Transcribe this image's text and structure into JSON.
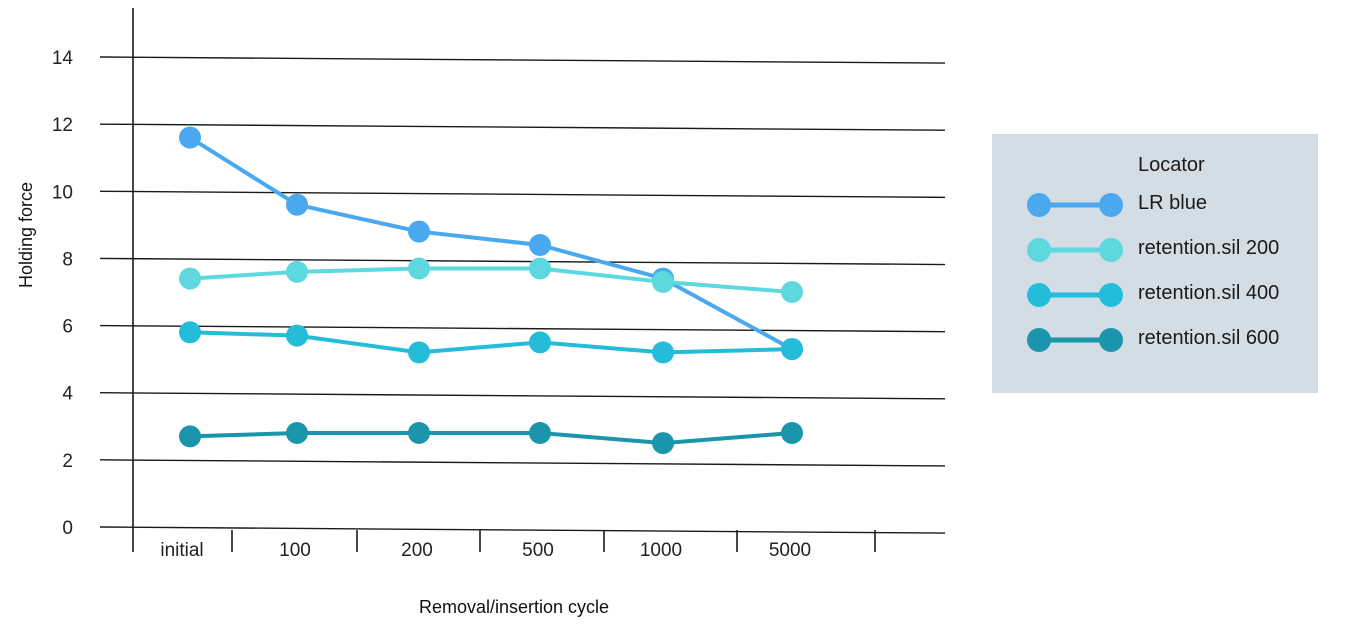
{
  "chart_data": {
    "type": "line",
    "xlabel": "Removal/insertion cycle",
    "ylabel": "Holding force",
    "categories": [
      "initial",
      "100",
      "200",
      "500",
      "1000",
      "5000"
    ],
    "ylim": [
      0,
      14
    ],
    "yticks": [
      0,
      2,
      4,
      6,
      8,
      10,
      12,
      14
    ],
    "grid": true,
    "legend_title": "Locator",
    "legend_position": "right",
    "series": [
      {
        "name": "LR blue",
        "color": "#4aa8ee",
        "values": [
          11.6,
          9.6,
          8.8,
          8.4,
          7.4,
          5.3
        ]
      },
      {
        "name": "retention.sil 200",
        "color": "#5dd8df",
        "values": [
          7.4,
          7.6,
          7.7,
          7.7,
          7.3,
          7.0
        ]
      },
      {
        "name": "retention.sil 400",
        "color": "#25bcd9",
        "values": [
          5.8,
          5.7,
          5.2,
          5.5,
          5.2,
          5.3
        ]
      },
      {
        "name": "retention.sil 600",
        "color": "#1b95ab",
        "values": [
          2.7,
          2.8,
          2.8,
          2.8,
          2.5,
          2.8
        ]
      }
    ]
  }
}
